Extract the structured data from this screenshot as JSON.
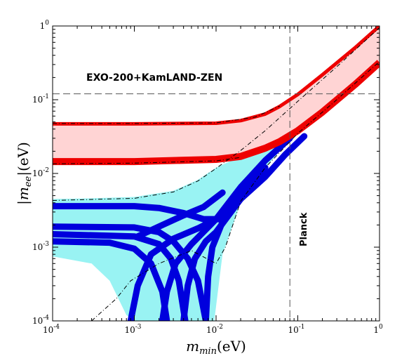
{
  "chart_data": {
    "type": "area",
    "xscale": "log",
    "yscale": "log",
    "xlim": [
      0.0001,
      1
    ],
    "ylim": [
      0.0001,
      1
    ],
    "xlabel": "m_min(eV)",
    "ylabel": "|m_ee|(eV)",
    "xlabel_main": "m",
    "xlabel_sub": "min",
    "xlabel_unit": "(eV)",
    "ylabel_main": "|m",
    "ylabel_sub": "ee",
    "ylabel_unit": "|(eV)",
    "x_ticks": [
      {
        "base": "10",
        "exp": "-4",
        "value": 0.0001
      },
      {
        "base": "10",
        "exp": "-3",
        "value": 0.001
      },
      {
        "base": "10",
        "exp": "-2",
        "value": 0.01
      },
      {
        "base": "10",
        "exp": "-1",
        "value": 0.1
      },
      {
        "base": "1",
        "exp": "0",
        "value": 1
      }
    ],
    "y_ticks": [
      {
        "base": "10",
        "exp": "-4",
        "value": 0.0001
      },
      {
        "base": "10",
        "exp": "-3",
        "value": 0.001
      },
      {
        "base": "10",
        "exp": "-2",
        "value": 0.01
      },
      {
        "base": "10",
        "exp": "-1",
        "value": 0.1
      },
      {
        "base": "1",
        "exp": "0",
        "value": 1
      }
    ],
    "annotations": {
      "exo_kamland": "EXO-200+KamLAND-ZEN",
      "planck": "Planck"
    },
    "limits": {
      "exo_kamland_mee": 0.12,
      "planck_mmin": 0.08
    },
    "bands": {
      "inverted_ordering": {
        "fill": "#ffd4d4",
        "edge": "#ee0000",
        "upper": [
          [
            0.0001,
            0.048
          ],
          [
            0.001,
            0.048
          ],
          [
            0.01,
            0.049
          ],
          [
            0.02,
            0.053
          ],
          [
            0.04,
            0.065
          ],
          [
            0.06,
            0.082
          ],
          [
            0.1,
            0.12
          ],
          [
            0.2,
            0.22
          ],
          [
            0.5,
            0.51
          ],
          [
            1,
            1.0
          ]
        ],
        "lower": [
          [
            0.0001,
            0.0145
          ],
          [
            0.001,
            0.0145
          ],
          [
            0.01,
            0.0155
          ],
          [
            0.02,
            0.017
          ],
          [
            0.04,
            0.022
          ],
          [
            0.06,
            0.027
          ],
          [
            0.1,
            0.038
          ],
          [
            0.2,
            0.068
          ],
          [
            0.5,
            0.16
          ],
          [
            1,
            0.32
          ]
        ]
      },
      "normal_ordering": {
        "fill": "#99f3f3",
        "edge": "#0000dd",
        "upper": [
          [
            0.0001,
            0.0045
          ],
          [
            0.0003,
            0.0046
          ],
          [
            0.001,
            0.0048
          ],
          [
            0.003,
            0.0058
          ],
          [
            0.006,
            0.0082
          ],
          [
            0.01,
            0.012
          ],
          [
            0.02,
            0.017
          ],
          [
            0.04,
            0.027
          ],
          [
            0.06,
            0.038
          ],
          [
            0.1,
            0.06
          ],
          [
            0.15,
            0.09
          ]
        ],
        "lower": [
          [
            0.0001,
            0.00075
          ],
          [
            0.0003,
            0.0006
          ],
          [
            0.0005,
            0.00035
          ],
          [
            0.0008,
            0.00012
          ],
          [
            0.001,
            0.0001
          ],
          [
            0.0095,
            0.0001
          ],
          [
            0.012,
            0.0008
          ],
          [
            0.02,
            0.004
          ],
          [
            0.04,
            0.012
          ],
          [
            0.07,
            0.024
          ],
          [
            0.1,
            0.034
          ],
          [
            0.15,
            0.05
          ]
        ]
      }
    },
    "curves": {
      "normal_ordering_blue": [
        [
          [
            0.0001,
            0.0036
          ],
          [
            0.001,
            0.0036
          ],
          [
            0.002,
            0.0034
          ],
          [
            0.004,
            0.0029
          ],
          [
            0.007,
            0.0024
          ],
          [
            0.012,
            0.0024
          ],
          [
            0.02,
            0.0045
          ],
          [
            0.04,
            0.009
          ],
          [
            0.07,
            0.018
          ],
          [
            0.12,
            0.032
          ]
        ],
        [
          [
            0.0001,
            0.0019
          ],
          [
            0.001,
            0.00185
          ],
          [
            0.002,
            0.0016
          ],
          [
            0.003,
            0.0012
          ],
          [
            0.0045,
            0.0007
          ],
          [
            0.006,
            0.00035
          ],
          [
            0.0075,
            0.0001
          ]
        ],
        [
          [
            0.0001,
            0.0015
          ],
          [
            0.001,
            0.0014
          ],
          [
            0.002,
            0.0011
          ],
          [
            0.0028,
            0.0007
          ],
          [
            0.0035,
            0.00035
          ],
          [
            0.0042,
            0.0001
          ]
        ],
        [
          [
            0.0001,
            0.0012
          ],
          [
            0.0005,
            0.00115
          ],
          [
            0.001,
            0.00095
          ],
          [
            0.0016,
            0.0006
          ],
          [
            0.0022,
            0.00025
          ],
          [
            0.0025,
            0.0001
          ]
        ],
        [
          [
            0.0022,
            0.0001
          ],
          [
            0.0025,
            0.00025
          ],
          [
            0.0032,
            0.0006
          ],
          [
            0.005,
            0.0011
          ],
          [
            0.01,
            0.0024
          ],
          [
            0.02,
            0.0065
          ],
          [
            0.04,
            0.015
          ],
          [
            0.08,
            0.03
          ]
        ],
        [
          [
            0.004,
            0.0001
          ],
          [
            0.0045,
            0.0003
          ],
          [
            0.0055,
            0.0007
          ],
          [
            0.0075,
            0.0012
          ],
          [
            0.01,
            0.0016
          ],
          [
            0.02,
            0.0045
          ]
        ],
        [
          [
            0.0075,
            0.0001
          ],
          [
            0.008,
            0.0004
          ],
          [
            0.009,
            0.001
          ],
          [
            0.012,
            0.0022
          ],
          [
            0.02,
            0.005
          ],
          [
            0.04,
            0.012
          ]
        ],
        [
          [
            0.0011,
            0.0014
          ],
          [
            0.002,
            0.0019
          ],
          [
            0.004,
            0.0027
          ],
          [
            0.007,
            0.0035
          ],
          [
            0.012,
            0.0055
          ]
        ],
        [
          [
            0.0009,
            0.0001
          ],
          [
            0.0011,
            0.0003
          ],
          [
            0.0016,
            0.0008
          ],
          [
            0.003,
            0.0013
          ],
          [
            0.006,
            0.0018
          ],
          [
            0.01,
            0.0024
          ]
        ]
      ],
      "inverted_ordering_red": [
        [
          [
            0.0001,
            0.0145
          ],
          [
            0.001,
            0.0145
          ],
          [
            0.01,
            0.0155
          ],
          [
            0.02,
            0.017
          ],
          [
            0.04,
            0.022
          ],
          [
            0.06,
            0.027
          ],
          [
            0.1,
            0.038
          ],
          [
            0.2,
            0.068
          ],
          [
            0.5,
            0.16
          ],
          [
            1,
            0.32
          ]
        ],
        [
          [
            0.0001,
            0.047
          ],
          [
            0.001,
            0.047
          ],
          [
            0.01,
            0.048
          ],
          [
            0.02,
            0.052
          ],
          [
            0.04,
            0.064
          ],
          [
            0.06,
            0.081
          ],
          [
            0.1,
            0.118
          ],
          [
            0.2,
            0.218
          ],
          [
            0.5,
            0.505
          ],
          [
            1,
            1.0
          ]
        ]
      ],
      "dashdot": [
        [
          [
            0.0001,
            0.0043
          ],
          [
            0.001,
            0.0046
          ],
          [
            0.003,
            0.0056
          ],
          [
            0.006,
            0.0079
          ],
          [
            0.01,
            0.0117
          ],
          [
            0.02,
            0.0205
          ],
          [
            0.04,
            0.038
          ],
          [
            0.1,
            0.095
          ],
          [
            0.3,
            0.28
          ],
          [
            1,
            0.95
          ]
        ],
        [
          [
            0.0003,
            0.0001
          ],
          [
            0.0006,
            0.0002
          ],
          [
            0.0009,
            0.00035
          ],
          [
            0.002,
            0.0006
          ],
          [
            0.005,
            0.0009
          ],
          [
            0.01,
            0.0006
          ],
          [
            0.013,
            0.001
          ],
          [
            0.02,
            0.0042
          ],
          [
            0.04,
            0.012
          ],
          [
            0.1,
            0.035
          ],
          [
            0.3,
            0.1
          ],
          [
            1,
            0.33
          ]
        ],
        [
          [
            0.0001,
            0.0475
          ],
          [
            0.001,
            0.0475
          ],
          [
            0.01,
            0.0485
          ],
          [
            0.03,
            0.058
          ],
          [
            0.06,
            0.082
          ]
        ],
        [
          [
            0.0001,
            0.0135
          ],
          [
            0.001,
            0.0138
          ],
          [
            0.01,
            0.0148
          ],
          [
            0.02,
            0.0165
          ]
        ]
      ]
    },
    "colors": {
      "frame": "#000000",
      "dashed_limit": "#555555",
      "dashdot": "#000000"
    }
  }
}
